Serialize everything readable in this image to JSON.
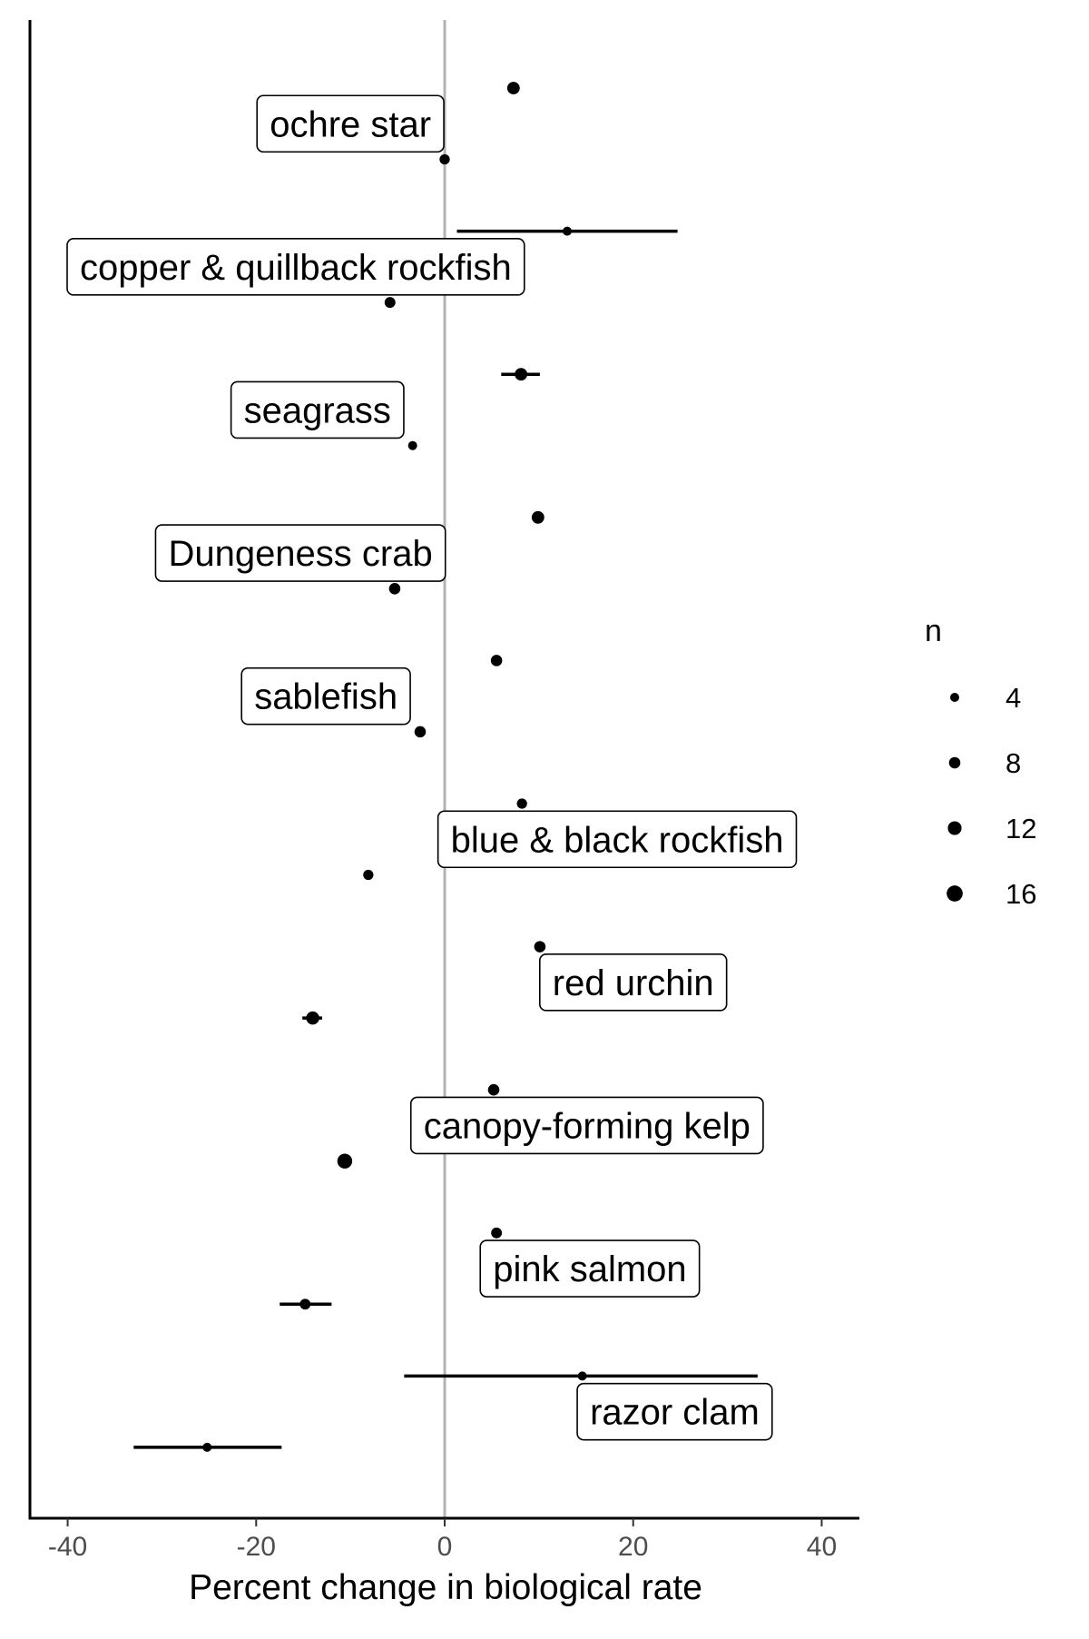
{
  "chart_data": {
    "type": "scatter",
    "title": "",
    "xlabel": "Percent change in biological rate",
    "ylabel": "",
    "xlim": [
      -44,
      44
    ],
    "xticks": [
      -40,
      -20,
      0,
      20,
      40
    ],
    "tick_labels": [
      "-40",
      "-20",
      "0",
      "20",
      "40"
    ],
    "reference_line_x": 0,
    "grid": false,
    "legend": {
      "title": "n",
      "placement": "right",
      "entries": [
        {
          "label": "4",
          "n": 4
        },
        {
          "label": "8",
          "n": 8
        },
        {
          "label": "12",
          "n": 12
        },
        {
          "label": "16",
          "n": 16
        }
      ]
    },
    "groups": [
      {
        "label": "ochre star",
        "label_x": -10,
        "points": [
          {
            "x": 7.3,
            "lo": null,
            "hi": null,
            "n": 10
          },
          {
            "x": 0.0,
            "lo": null,
            "hi": null,
            "n": 6
          }
        ]
      },
      {
        "label": "copper & quillback rockfish",
        "label_x": -15.8,
        "points": [
          {
            "x": 13.0,
            "lo": 1.3,
            "hi": 24.7,
            "n": 4
          },
          {
            "x": -5.8,
            "lo": null,
            "hi": null,
            "n": 7
          }
        ]
      },
      {
        "label": "seagrass",
        "label_x": -13.5,
        "points": [
          {
            "x": 8.1,
            "lo": 6.0,
            "hi": 10.1,
            "n": 10
          },
          {
            "x": -3.4,
            "lo": null,
            "hi": null,
            "n": 4
          }
        ]
      },
      {
        "label": "Dungeness crab",
        "label_x": -15.3,
        "points": [
          {
            "x": 9.9,
            "lo": null,
            "hi": null,
            "n": 10
          },
          {
            "x": -5.3,
            "lo": null,
            "hi": null,
            "n": 8
          }
        ]
      },
      {
        "label": "sablefish",
        "label_x": -12.6,
        "points": [
          {
            "x": 5.5,
            "lo": null,
            "hi": null,
            "n": 8
          },
          {
            "x": -2.6,
            "lo": null,
            "hi": null,
            "n": 8
          }
        ]
      },
      {
        "label": "blue & black rockfish",
        "label_x": 18.3,
        "points": [
          {
            "x": 8.2,
            "lo": null,
            "hi": null,
            "n": 6
          },
          {
            "x": -8.1,
            "lo": null,
            "hi": null,
            "n": 6
          }
        ]
      },
      {
        "label": "red urchin",
        "label_x": 20.0,
        "points": [
          {
            "x": 10.1,
            "lo": null,
            "hi": null,
            "n": 8
          },
          {
            "x": -14.0,
            "lo": -15.1,
            "hi": -13.0,
            "n": 11
          }
        ]
      },
      {
        "label": "canopy-forming kelp",
        "label_x": 15.1,
        "points": [
          {
            "x": 5.2,
            "lo": null,
            "hi": null,
            "n": 8
          },
          {
            "x": -10.6,
            "lo": null,
            "hi": null,
            "n": 14
          }
        ]
      },
      {
        "label": "pink salmon",
        "label_x": 15.4,
        "points": [
          {
            "x": 5.5,
            "lo": null,
            "hi": null,
            "n": 7
          },
          {
            "x": -14.8,
            "lo": -17.5,
            "hi": -12.0,
            "n": 7
          }
        ]
      },
      {
        "label": "razor clam",
        "label_x": 24.4,
        "points": [
          {
            "x": 14.6,
            "lo": -4.3,
            "hi": 33.2,
            "n": 4
          },
          {
            "x": -25.2,
            "lo": -33.0,
            "hi": -17.3,
            "n": 4
          }
        ]
      }
    ]
  }
}
